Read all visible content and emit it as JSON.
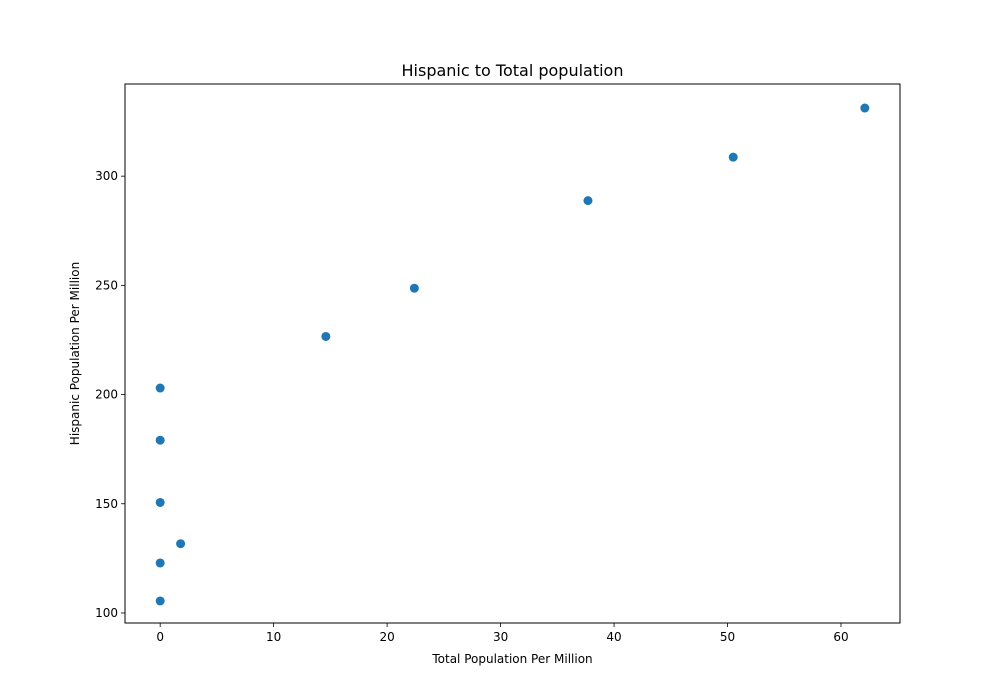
{
  "chart_data": {
    "type": "scatter",
    "title": "Hispanic to Total population",
    "xlabel": "Total Population Per Million",
    "ylabel": "Hispanic Population Per Million",
    "xlim": [
      -3.1,
      65.2
    ],
    "ylim": [
      95.4,
      342.2
    ],
    "xticks": [
      0,
      10,
      20,
      30,
      40,
      50,
      60
    ],
    "yticks": [
      100,
      150,
      200,
      250,
      300
    ],
    "grid": false,
    "marker_color": "#1f77b4",
    "points": [
      {
        "x": 0.0,
        "y": 105.5
      },
      {
        "x": 0.0,
        "y": 122.9
      },
      {
        "x": 1.8,
        "y": 131.7
      },
      {
        "x": 0.0,
        "y": 150.6
      },
      {
        "x": 0.0,
        "y": 179.1
      },
      {
        "x": 0.0,
        "y": 203.0
      },
      {
        "x": 14.6,
        "y": 226.6
      },
      {
        "x": 22.4,
        "y": 248.7
      },
      {
        "x": 37.7,
        "y": 288.8
      },
      {
        "x": 50.5,
        "y": 308.7
      },
      {
        "x": 62.1,
        "y": 331.2
      }
    ]
  }
}
